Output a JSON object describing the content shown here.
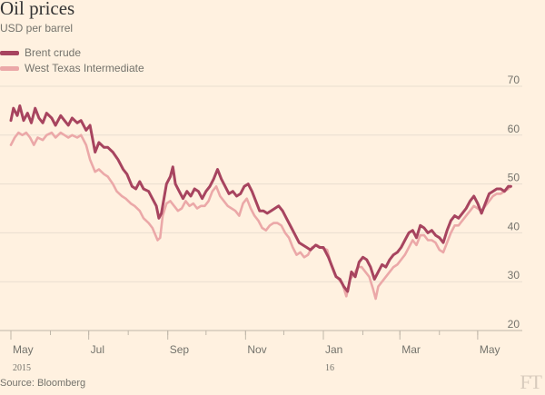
{
  "header": {
    "title": "Oil prices",
    "subtitle": "USD per barrel"
  },
  "footer": {
    "source": "Source: Bloomberg",
    "logo": "FT"
  },
  "colors": {
    "background": "#fff1e0",
    "brent": "#a7445f",
    "wti": "#eba8a8",
    "grid": "#e9decf"
  },
  "chart_data": {
    "type": "line",
    "title": "Oil prices",
    "subtitle": "USD per barrel",
    "ylabel": "USD per barrel",
    "ylim": [
      20,
      70
    ],
    "yticks": [
      20,
      30,
      40,
      50,
      60,
      70
    ],
    "y_axis_position": "right",
    "grid": true,
    "legend_position": "top-left",
    "xlim": [
      "2015-05-01",
      "2016-05-31"
    ],
    "xticks": [
      {
        "date": "2015-05-01",
        "label": "May",
        "year": "2015"
      },
      {
        "date": "2015-07-01",
        "label": "Jul",
        "year": ""
      },
      {
        "date": "2015-09-01",
        "label": "Sep",
        "year": ""
      },
      {
        "date": "2015-11-01",
        "label": "Nov",
        "year": ""
      },
      {
        "date": "2016-01-01",
        "label": "Jan",
        "year": "16"
      },
      {
        "date": "2016-03-01",
        "label": "Mar",
        "year": ""
      },
      {
        "date": "2016-05-01",
        "label": "May",
        "year": ""
      }
    ],
    "series": [
      {
        "name": "Brent crude",
        "color": "#a7445f",
        "points": [
          [
            "2015-05-01",
            63.0
          ],
          [
            "2015-05-03",
            65.5
          ],
          [
            "2015-05-06",
            64.0
          ],
          [
            "2015-05-08",
            66.0
          ],
          [
            "2015-05-11",
            63.0
          ],
          [
            "2015-05-14",
            64.5
          ],
          [
            "2015-05-17",
            62.5
          ],
          [
            "2015-05-20",
            65.5
          ],
          [
            "2015-05-23",
            63.5
          ],
          [
            "2015-05-26",
            62.5
          ],
          [
            "2015-05-29",
            64.5
          ],
          [
            "2015-06-02",
            63.5
          ],
          [
            "2015-06-05",
            62.0
          ],
          [
            "2015-06-09",
            64.0
          ],
          [
            "2015-06-12",
            63.0
          ],
          [
            "2015-06-15",
            62.0
          ],
          [
            "2015-06-18",
            63.5
          ],
          [
            "2015-06-22",
            62.5
          ],
          [
            "2015-06-25",
            63.0
          ],
          [
            "2015-06-29",
            61.0
          ],
          [
            "2015-07-02",
            62.0
          ],
          [
            "2015-07-06",
            56.5
          ],
          [
            "2015-07-09",
            58.5
          ],
          [
            "2015-07-13",
            57.5
          ],
          [
            "2015-07-16",
            57.5
          ],
          [
            "2015-07-20",
            56.5
          ],
          [
            "2015-07-24",
            55.0
          ],
          [
            "2015-07-28",
            53.0
          ],
          [
            "2015-07-31",
            52.0
          ],
          [
            "2015-08-04",
            49.5
          ],
          [
            "2015-08-07",
            49.0
          ],
          [
            "2015-08-10",
            50.5
          ],
          [
            "2015-08-13",
            49.0
          ],
          [
            "2015-08-17",
            48.5
          ],
          [
            "2015-08-20",
            47.0
          ],
          [
            "2015-08-23",
            45.5
          ],
          [
            "2015-08-25",
            43.0
          ],
          [
            "2015-08-27",
            44.0
          ],
          [
            "2015-08-29",
            47.0
          ],
          [
            "2015-08-31",
            50.0
          ],
          [
            "2015-09-03",
            51.5
          ],
          [
            "2015-09-05",
            53.5
          ],
          [
            "2015-09-07",
            50.0
          ],
          [
            "2015-09-10",
            48.5
          ],
          [
            "2015-09-13",
            47.0
          ],
          [
            "2015-09-16",
            48.5
          ],
          [
            "2015-09-19",
            47.5
          ],
          [
            "2015-09-22",
            49.0
          ],
          [
            "2015-09-25",
            48.5
          ],
          [
            "2015-09-28",
            47.0
          ],
          [
            "2015-10-01",
            48.5
          ],
          [
            "2015-10-04",
            49.5
          ],
          [
            "2015-10-07",
            51.0
          ],
          [
            "2015-10-10",
            53.0
          ],
          [
            "2015-10-13",
            51.0
          ],
          [
            "2015-10-16",
            49.5
          ],
          [
            "2015-10-19",
            48.0
          ],
          [
            "2015-10-22",
            48.5
          ],
          [
            "2015-10-25",
            47.5
          ],
          [
            "2015-10-28",
            48.0
          ],
          [
            "2015-10-31",
            49.5
          ],
          [
            "2015-11-03",
            50.0
          ],
          [
            "2015-11-06",
            48.5
          ],
          [
            "2015-11-09",
            46.5
          ],
          [
            "2015-11-12",
            44.5
          ],
          [
            "2015-11-15",
            44.5
          ],
          [
            "2015-11-18",
            44.0
          ],
          [
            "2015-11-21",
            44.5
          ],
          [
            "2015-11-24",
            45.0
          ],
          [
            "2015-11-27",
            45.5
          ],
          [
            "2015-11-30",
            44.5
          ],
          [
            "2015-12-03",
            43.0
          ],
          [
            "2015-12-07",
            41.0
          ],
          [
            "2015-12-10",
            39.5
          ],
          [
            "2015-12-13",
            38.0
          ],
          [
            "2015-12-16",
            37.5
          ],
          [
            "2015-12-19",
            37.0
          ],
          [
            "2015-12-22",
            36.5
          ],
          [
            "2015-12-26",
            37.5
          ],
          [
            "2015-12-29",
            37.0
          ],
          [
            "2016-01-01",
            37.0
          ],
          [
            "2016-01-05",
            35.0
          ],
          [
            "2016-01-08",
            33.0
          ],
          [
            "2016-01-11",
            31.0
          ],
          [
            "2016-01-14",
            30.5
          ],
          [
            "2016-01-17",
            29.0
          ],
          [
            "2016-01-20",
            28.0
          ],
          [
            "2016-01-23",
            32.0
          ],
          [
            "2016-01-26",
            31.0
          ],
          [
            "2016-01-29",
            34.0
          ],
          [
            "2016-02-01",
            35.0
          ],
          [
            "2016-02-04",
            34.5
          ],
          [
            "2016-02-07",
            33.0
          ],
          [
            "2016-02-10",
            30.5
          ],
          [
            "2016-02-13",
            32.0
          ],
          [
            "2016-02-16",
            33.5
          ],
          [
            "2016-02-19",
            33.0
          ],
          [
            "2016-02-22",
            34.5
          ],
          [
            "2016-02-25",
            35.5
          ],
          [
            "2016-02-28",
            36.0
          ],
          [
            "2016-03-02",
            37.0
          ],
          [
            "2016-03-05",
            38.5
          ],
          [
            "2016-03-08",
            40.0
          ],
          [
            "2016-03-11",
            40.5
          ],
          [
            "2016-03-14",
            39.0
          ],
          [
            "2016-03-17",
            41.5
          ],
          [
            "2016-03-20",
            41.0
          ],
          [
            "2016-03-23",
            40.0
          ],
          [
            "2016-03-26",
            40.5
          ],
          [
            "2016-03-29",
            39.5
          ],
          [
            "2016-04-01",
            39.0
          ],
          [
            "2016-04-04",
            38.0
          ],
          [
            "2016-04-07",
            40.5
          ],
          [
            "2016-04-10",
            42.5
          ],
          [
            "2016-04-13",
            43.5
          ],
          [
            "2016-04-16",
            43.0
          ],
          [
            "2016-04-19",
            44.0
          ],
          [
            "2016-04-22",
            45.0
          ],
          [
            "2016-04-25",
            46.5
          ],
          [
            "2016-04-28",
            47.5
          ],
          [
            "2016-05-01",
            46.0
          ],
          [
            "2016-05-04",
            44.0
          ],
          [
            "2016-05-07",
            46.0
          ],
          [
            "2016-05-10",
            48.0
          ],
          [
            "2016-05-13",
            48.5
          ],
          [
            "2016-05-16",
            49.0
          ],
          [
            "2016-05-19",
            49.0
          ],
          [
            "2016-05-22",
            48.5
          ],
          [
            "2016-05-25",
            49.5
          ],
          [
            "2016-05-27",
            49.5
          ]
        ]
      },
      {
        "name": "West Texas Intermediate",
        "color": "#eba8a8",
        "points": [
          [
            "2015-05-01",
            58.0
          ],
          [
            "2015-05-04",
            59.5
          ],
          [
            "2015-05-07",
            60.5
          ],
          [
            "2015-05-10",
            60.0
          ],
          [
            "2015-05-13",
            60.5
          ],
          [
            "2015-05-16",
            59.5
          ],
          [
            "2015-05-19",
            58.0
          ],
          [
            "2015-05-22",
            59.5
          ],
          [
            "2015-05-26",
            59.0
          ],
          [
            "2015-05-29",
            60.0
          ],
          [
            "2015-06-02",
            60.5
          ],
          [
            "2015-06-05",
            59.5
          ],
          [
            "2015-06-09",
            60.5
          ],
          [
            "2015-06-12",
            60.0
          ],
          [
            "2015-06-15",
            59.5
          ],
          [
            "2015-06-18",
            60.0
          ],
          [
            "2015-06-22",
            59.5
          ],
          [
            "2015-06-25",
            60.0
          ],
          [
            "2015-06-29",
            58.0
          ],
          [
            "2015-07-02",
            55.0
          ],
          [
            "2015-07-06",
            52.5
          ],
          [
            "2015-07-09",
            53.0
          ],
          [
            "2015-07-13",
            52.0
          ],
          [
            "2015-07-16",
            51.5
          ],
          [
            "2015-07-20",
            50.0
          ],
          [
            "2015-07-23",
            48.5
          ],
          [
            "2015-07-27",
            47.5
          ],
          [
            "2015-07-30",
            47.0
          ],
          [
            "2015-08-03",
            46.0
          ],
          [
            "2015-08-06",
            45.5
          ],
          [
            "2015-08-10",
            44.5
          ],
          [
            "2015-08-13",
            43.0
          ],
          [
            "2015-08-17",
            42.0
          ],
          [
            "2015-08-20",
            41.0
          ],
          [
            "2015-08-24",
            38.5
          ],
          [
            "2015-08-26",
            39.0
          ],
          [
            "2015-08-28",
            43.5
          ],
          [
            "2015-08-31",
            46.0
          ],
          [
            "2015-09-03",
            46.5
          ],
          [
            "2015-09-06",
            45.5
          ],
          [
            "2015-09-09",
            44.5
          ],
          [
            "2015-09-12",
            45.0
          ],
          [
            "2015-09-15",
            46.5
          ],
          [
            "2015-09-18",
            45.5
          ],
          [
            "2015-09-21",
            46.0
          ],
          [
            "2015-09-24",
            45.0
          ],
          [
            "2015-09-27",
            45.5
          ],
          [
            "2015-09-30",
            45.5
          ],
          [
            "2015-10-03",
            46.5
          ],
          [
            "2015-10-06",
            48.5
          ],
          [
            "2015-10-09",
            49.5
          ],
          [
            "2015-10-12",
            47.5
          ],
          [
            "2015-10-15",
            46.5
          ],
          [
            "2015-10-18",
            45.5
          ],
          [
            "2015-10-21",
            45.0
          ],
          [
            "2015-10-24",
            44.5
          ],
          [
            "2015-10-27",
            43.5
          ],
          [
            "2015-10-30",
            46.0
          ],
          [
            "2015-11-02",
            47.0
          ],
          [
            "2015-11-05",
            45.0
          ],
          [
            "2015-11-08",
            43.5
          ],
          [
            "2015-11-11",
            42.5
          ],
          [
            "2015-11-14",
            41.0
          ],
          [
            "2015-11-17",
            40.5
          ],
          [
            "2015-11-20",
            41.5
          ],
          [
            "2015-11-23",
            42.0
          ],
          [
            "2015-11-26",
            42.0
          ],
          [
            "2015-11-29",
            41.5
          ],
          [
            "2015-12-02",
            40.0
          ],
          [
            "2015-12-05",
            39.0
          ],
          [
            "2015-12-08",
            37.0
          ],
          [
            "2015-12-11",
            35.5
          ],
          [
            "2015-12-14",
            36.0
          ],
          [
            "2015-12-17",
            35.0
          ],
          [
            "2015-12-20",
            35.5
          ],
          [
            "2015-12-23",
            37.0
          ],
          [
            "2015-12-27",
            37.5
          ],
          [
            "2015-12-30",
            37.0
          ],
          [
            "2016-01-04",
            36.5
          ],
          [
            "2016-01-07",
            33.5
          ],
          [
            "2016-01-10",
            31.5
          ],
          [
            "2016-01-13",
            30.5
          ],
          [
            "2016-01-16",
            29.5
          ],
          [
            "2016-01-19",
            27.0
          ],
          [
            "2016-01-22",
            30.5
          ],
          [
            "2016-01-25",
            31.5
          ],
          [
            "2016-01-28",
            33.0
          ],
          [
            "2016-01-31",
            33.0
          ],
          [
            "2016-02-03",
            32.0
          ],
          [
            "2016-02-06",
            31.0
          ],
          [
            "2016-02-09",
            28.5
          ],
          [
            "2016-02-11",
            26.5
          ],
          [
            "2016-02-13",
            29.0
          ],
          [
            "2016-02-16",
            30.0
          ],
          [
            "2016-02-19",
            31.0
          ],
          [
            "2016-02-22",
            32.0
          ],
          [
            "2016-02-25",
            33.0
          ],
          [
            "2016-02-28",
            33.5
          ],
          [
            "2016-03-02",
            34.5
          ],
          [
            "2016-03-05",
            35.5
          ],
          [
            "2016-03-08",
            37.0
          ],
          [
            "2016-03-11",
            38.5
          ],
          [
            "2016-03-14",
            37.5
          ],
          [
            "2016-03-17",
            39.5
          ],
          [
            "2016-03-20",
            39.5
          ],
          [
            "2016-03-23",
            38.5
          ],
          [
            "2016-03-26",
            38.5
          ],
          [
            "2016-03-29",
            38.0
          ],
          [
            "2016-04-01",
            36.5
          ],
          [
            "2016-04-04",
            36.0
          ],
          [
            "2016-04-07",
            38.0
          ],
          [
            "2016-04-10",
            40.0
          ],
          [
            "2016-04-13",
            41.5
          ],
          [
            "2016-04-16",
            41.5
          ],
          [
            "2016-04-19",
            42.5
          ],
          [
            "2016-04-22",
            43.5
          ],
          [
            "2016-04-25",
            44.5
          ],
          [
            "2016-04-28",
            45.5
          ],
          [
            "2016-05-01",
            45.0
          ],
          [
            "2016-05-04",
            44.5
          ],
          [
            "2016-05-07",
            45.5
          ],
          [
            "2016-05-10",
            46.5
          ],
          [
            "2016-05-13",
            47.5
          ],
          [
            "2016-05-16",
            48.0
          ],
          [
            "2016-05-19",
            48.0
          ],
          [
            "2016-05-22",
            48.5
          ],
          [
            "2016-05-25",
            49.0
          ],
          [
            "2016-05-27",
            49.5
          ]
        ]
      }
    ]
  }
}
